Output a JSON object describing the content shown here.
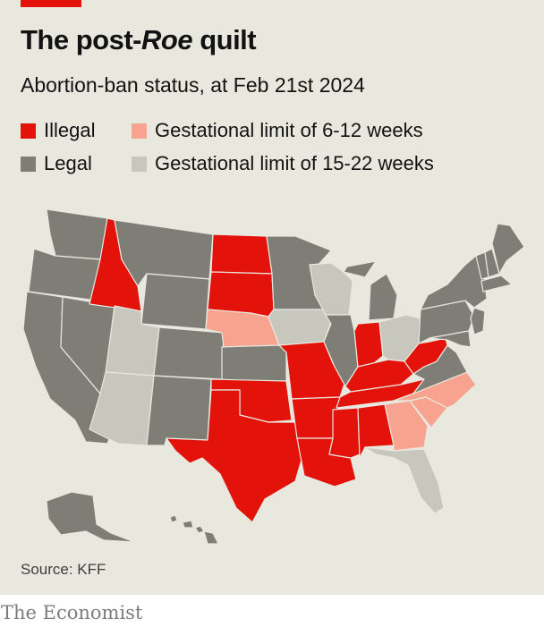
{
  "title_prefix": "The post-",
  "title_italic": "Roe",
  "title_suffix": " quilt",
  "subtitle": "Abortion-ban status, at Feb 21st 2024",
  "legend": {
    "illegal": {
      "label": "Illegal",
      "color": "#e3120b"
    },
    "legal": {
      "label": "Legal",
      "color": "#7f7e76"
    },
    "limit_6_12": {
      "label": "Gestational limit of 6-12 weeks",
      "color": "#f7a38f"
    },
    "limit_15_22": {
      "label": "Gestational limit of 15-22 weeks",
      "color": "#c8c7bd"
    }
  },
  "map_data": {
    "status_by_state": {
      "WA": "legal",
      "OR": "legal",
      "CA": "legal",
      "NV": "legal",
      "ID": "illegal",
      "MT": "legal",
      "WY": "legal",
      "UT": "limit_15_22",
      "AZ": "limit_15_22",
      "CO": "legal",
      "NM": "legal",
      "ND": "illegal",
      "SD": "illegal",
      "NE": "limit_6_12",
      "KS": "legal",
      "OK": "illegal",
      "TX": "illegal",
      "MN": "legal",
      "IA": "limit_15_22",
      "MO": "illegal",
      "AR": "illegal",
      "LA": "illegal",
      "WI": "limit_15_22",
      "IL": "legal",
      "MI": "legal",
      "IN": "illegal",
      "OH": "limit_15_22",
      "KY": "illegal",
      "TN": "illegal",
      "MS": "illegal",
      "AL": "illegal",
      "GA": "limit_6_12",
      "FL": "limit_15_22",
      "SC": "limit_6_12",
      "NC": "limit_6_12",
      "VA": "legal",
      "WV": "illegal",
      "PA": "legal",
      "NY": "legal",
      "ME": "legal",
      "NH": "legal",
      "VT": "legal",
      "MA": "legal",
      "NJ": "legal",
      "MD": "legal",
      "AK": "legal",
      "HI": "legal"
    }
  },
  "source": "Source: KFF",
  "brand": "The Economist"
}
